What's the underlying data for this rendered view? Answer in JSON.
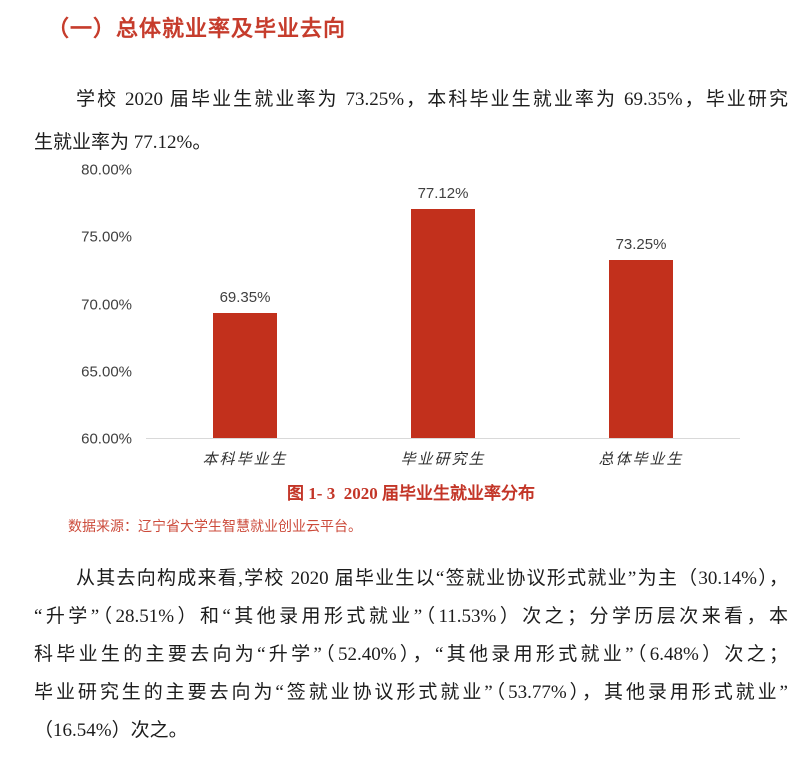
{
  "colors": {
    "heading_red": "#C63C2C",
    "caption_red": "#C33527",
    "source_red": "#CC4B3B",
    "bar_red": "#C2301C",
    "body_text": "#1C1C1C",
    "axis_text": "#3F3F3F",
    "axis_line": "#D9D9D9"
  },
  "heading": {
    "text": "（一）总体就业率及毕业去向"
  },
  "intro": {
    "lines": [
      "学校 2020 届毕业生就业率为 73.25%，本科毕业生就业率为 69.35%，毕业研究",
      "生就业率为 77.12%。"
    ]
  },
  "chart_data": {
    "type": "bar",
    "title": "图 1- 3  2020 届毕业生就业率分布",
    "categories": [
      "本科毕业生",
      "毕业研究生",
      "总体毕业生"
    ],
    "values": [
      69.35,
      77.12,
      73.25
    ],
    "labels": [
      "69.35%",
      "77.12%",
      "73.25%"
    ],
    "xlabel": "",
    "ylabel": "",
    "ylim": [
      60,
      80
    ],
    "yticks": [
      "80.00%",
      "75.00%",
      "70.00%",
      "65.00%",
      "60.00%"
    ],
    "grid": false,
    "legend": "none",
    "bar_color": "#C2301C"
  },
  "caption": {
    "text": "图 1- 3  2020 届毕业生就业率分布"
  },
  "source": {
    "text": "数据来源：辽宁省大学生智慧就业创业云平台。"
  },
  "body": {
    "lines": [
      "从其去向构成来看,学校 2020 届毕业生以“签就业协议形式就业”为主（30.14%），",
      "“升学”（28.51%）和“其他录用形式就业”（11.53%）次之；分学历层次来看，本",
      "科毕业生的主要去向为“升学”（52.40%），“其他录用形式就业”（6.48%）次之；",
      "毕业研究生的主要去向为“签就业协议形式就业”（53.77%），其他录用形式就业”",
      "（16.54%）次之。"
    ]
  }
}
